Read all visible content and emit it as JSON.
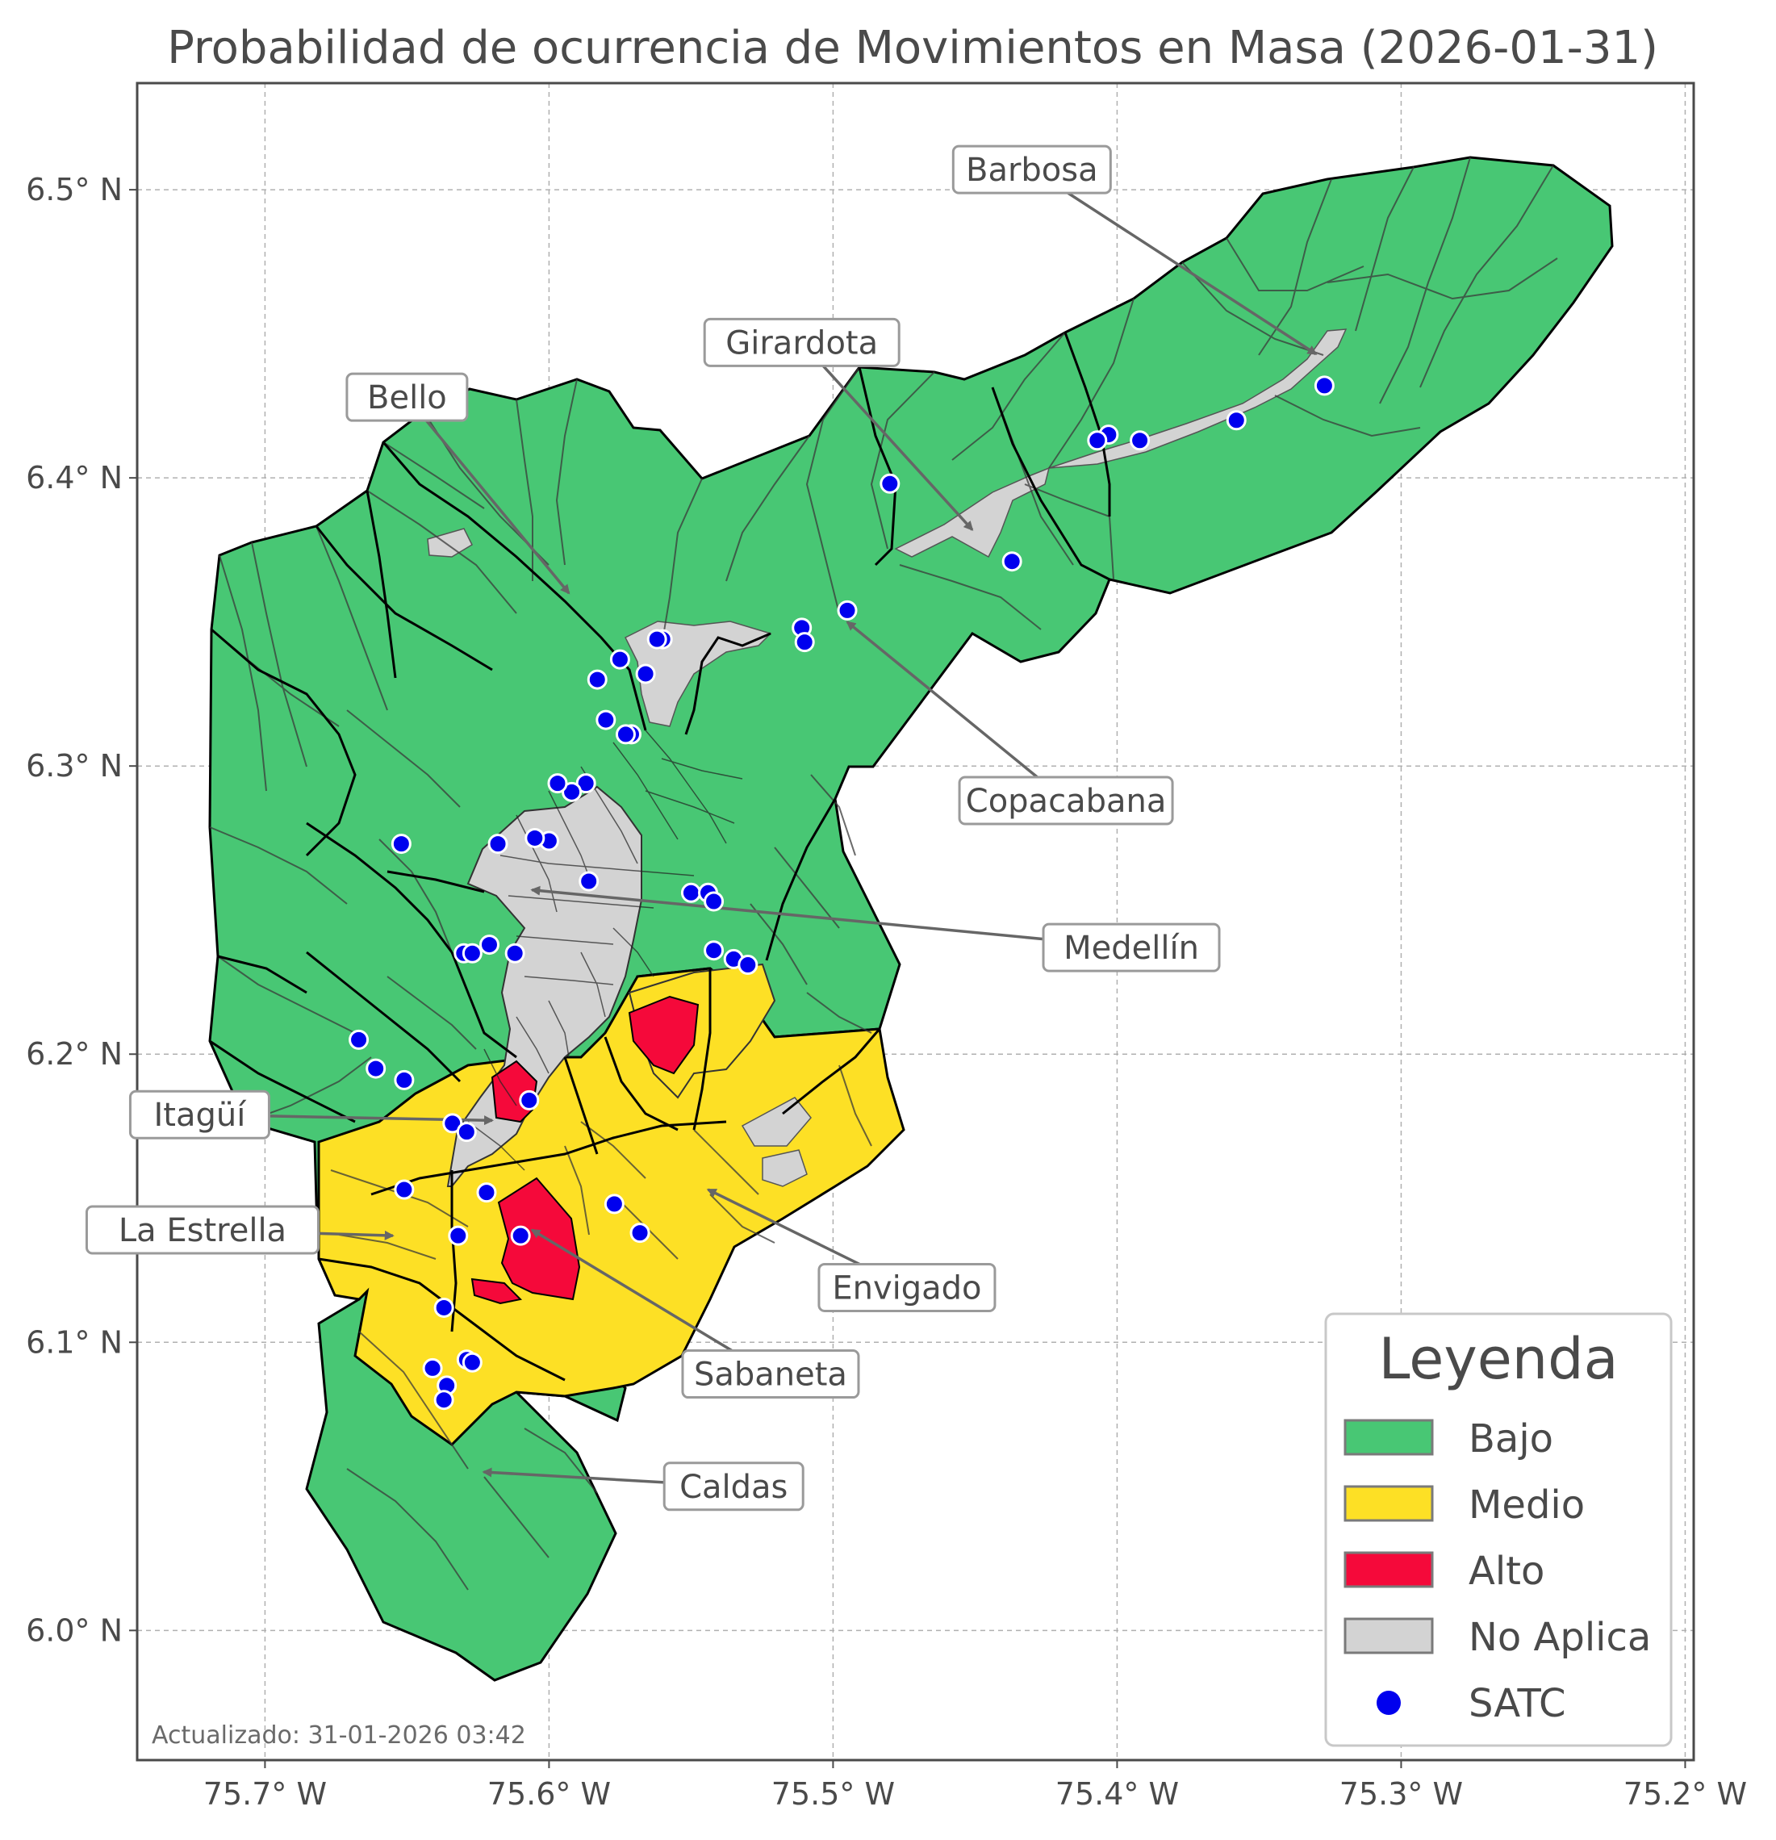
{
  "title": "Probabilidad de ocurrencia de Movimientos en Masa (2026-01-31)",
  "updated": "Actualizado: 31-01-2026 03:42",
  "axes": {
    "x_ticks": [
      {
        "value": -75.7,
        "label": "75.7° W"
      },
      {
        "value": -75.6,
        "label": "75.6° W"
      },
      {
        "value": -75.5,
        "label": "75.5° W"
      },
      {
        "value": -75.4,
        "label": "75.4° W"
      },
      {
        "value": -75.3,
        "label": "75.3° W"
      },
      {
        "value": -75.2,
        "label": "75.2° W"
      }
    ],
    "y_ticks": [
      {
        "value": 6.0,
        "label": "6.0° N"
      },
      {
        "value": 6.1,
        "label": "6.1° N"
      },
      {
        "value": 6.2,
        "label": "6.2° N"
      },
      {
        "value": 6.3,
        "label": "6.3° N"
      },
      {
        "value": 6.4,
        "label": "6.4° N"
      },
      {
        "value": 6.5,
        "label": "6.5° N"
      }
    ],
    "x_range": [
      -75.745,
      -75.197
    ],
    "y_range": [
      5.955,
      6.537
    ],
    "grid": true
  },
  "colors": {
    "bajo": "#48c774",
    "medio": "#fde025",
    "alto": "#f5093a",
    "no_aplica": "#d3d3d3",
    "satc": "#0000ee"
  },
  "legend": {
    "title": "Leyenda",
    "position": "bottom-right",
    "items": [
      {
        "key": "bajo",
        "label": "Bajo",
        "type": "patch"
      },
      {
        "key": "medio",
        "label": "Medio",
        "type": "patch"
      },
      {
        "key": "alto",
        "label": "Alto",
        "type": "patch"
      },
      {
        "key": "no_aplica",
        "label": "No Aplica",
        "type": "patch"
      },
      {
        "key": "satc",
        "label": "SATC",
        "type": "marker"
      }
    ]
  },
  "municipalities": [
    {
      "name": "Barbosa",
      "label_lon": -75.43,
      "label_lat": 6.507,
      "arrow_lon": -75.33,
      "arrow_lat": 6.443
    },
    {
      "name": "Girardota",
      "label_lon": -75.511,
      "label_lat": 6.447,
      "arrow_lon": -75.451,
      "arrow_lat": 6.382
    },
    {
      "name": "Bello",
      "label_lon": -75.65,
      "label_lat": 6.428,
      "arrow_lon": -75.593,
      "arrow_lat": 6.36
    },
    {
      "name": "Copacabana",
      "label_lon": -75.418,
      "label_lat": 6.288,
      "arrow_lon": -75.495,
      "arrow_lat": 6.35
    },
    {
      "name": "Medellín",
      "label_lon": -75.395,
      "label_lat": 6.237,
      "arrow_lon": -75.606,
      "arrow_lat": 6.257
    },
    {
      "name": "Itagüí",
      "label_lon": -75.723,
      "label_lat": 6.179,
      "arrow_lon": -75.62,
      "arrow_lat": 6.177
    },
    {
      "name": "La Estrella",
      "label_lon": -75.722,
      "label_lat": 6.139,
      "arrow_lon": -75.655,
      "arrow_lat": 6.137
    },
    {
      "name": "Envigado",
      "label_lon": -75.474,
      "label_lat": 6.119,
      "arrow_lon": -75.544,
      "arrow_lat": 6.153
    },
    {
      "name": "Sabaneta",
      "label_lon": -75.522,
      "label_lat": 6.089,
      "arrow_lon": -75.606,
      "arrow_lat": 6.139
    },
    {
      "name": "Caldas",
      "label_lon": -75.535,
      "label_lat": 6.05,
      "arrow_lon": -75.623,
      "arrow_lat": 6.055
    }
  ],
  "satc_stations": [
    [
      -75.327,
      6.432
    ],
    [
      -75.358,
      6.42
    ],
    [
      -75.392,
      6.413
    ],
    [
      -75.403,
      6.415
    ],
    [
      -75.407,
      6.413
    ],
    [
      -75.48,
      6.398
    ],
    [
      -75.437,
      6.371
    ],
    [
      -75.495,
      6.354
    ],
    [
      -75.511,
      6.348
    ],
    [
      -75.51,
      6.343
    ],
    [
      -75.56,
      6.344
    ],
    [
      -75.562,
      6.344
    ],
    [
      -75.566,
      6.332
    ],
    [
      -75.575,
      6.337
    ],
    [
      -75.583,
      6.33
    ],
    [
      -75.58,
      6.316
    ],
    [
      -75.571,
      6.311
    ],
    [
      -75.573,
      6.311
    ],
    [
      -75.587,
      6.294
    ],
    [
      -75.592,
      6.291
    ],
    [
      -75.597,
      6.294
    ],
    [
      -75.652,
      6.273
    ],
    [
      -75.618,
      6.273
    ],
    [
      -75.6,
      6.274
    ],
    [
      -75.605,
      6.275
    ],
    [
      -75.586,
      6.26
    ],
    [
      -75.55,
      6.256
    ],
    [
      -75.544,
      6.256
    ],
    [
      -75.542,
      6.253
    ],
    [
      -75.542,
      6.236
    ],
    [
      -75.535,
      6.233
    ],
    [
      -75.53,
      6.231
    ],
    [
      -75.612,
      6.235
    ],
    [
      -75.63,
      6.235
    ],
    [
      -75.627,
      6.235
    ],
    [
      -75.621,
      6.238
    ],
    [
      -75.667,
      6.205
    ],
    [
      -75.661,
      6.195
    ],
    [
      -75.651,
      6.191
    ],
    [
      -75.607,
      6.184
    ],
    [
      -75.634,
      6.176
    ],
    [
      -75.629,
      6.173
    ],
    [
      -75.651,
      6.153
    ],
    [
      -75.622,
      6.152
    ],
    [
      -75.632,
      6.137
    ],
    [
      -75.61,
      6.137
    ],
    [
      -75.577,
      6.148
    ],
    [
      -75.568,
      6.138
    ],
    [
      -75.637,
      6.112
    ],
    [
      -75.641,
      6.091
    ],
    [
      -75.629,
      6.094
    ],
    [
      -75.627,
      6.093
    ],
    [
      -75.636,
      6.085
    ],
    [
      -75.637,
      6.08
    ]
  ]
}
